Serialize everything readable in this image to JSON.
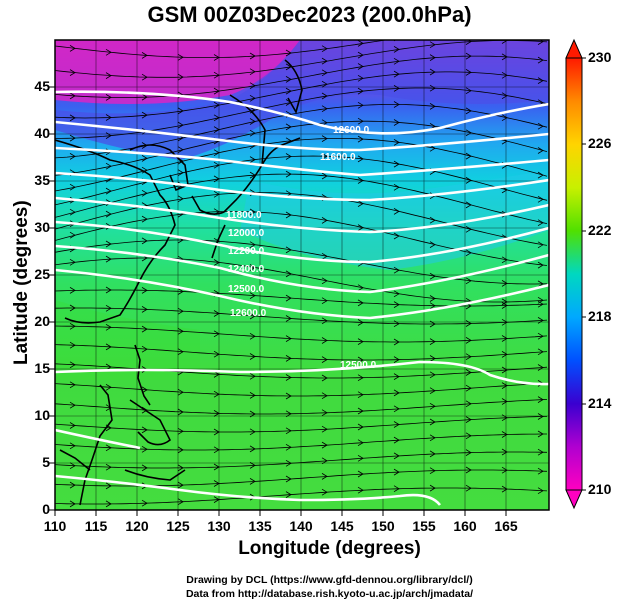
{
  "title": "GSM 00Z03Dec2023 (200.0hPa)",
  "x_axis": {
    "label": "Longitude (degrees)",
    "ticks": [
      "110",
      "115",
      "120",
      "125",
      "130",
      "135",
      "140",
      "145",
      "150",
      "155",
      "160",
      "165"
    ]
  },
  "y_axis": {
    "label": "Latitude  (degrees)",
    "ticks": [
      "0",
      "5",
      "10",
      "15",
      "20",
      "25",
      "30",
      "35",
      "40",
      "45"
    ]
  },
  "colorbar": {
    "ticks": [
      "230",
      "226",
      "222",
      "218",
      "214",
      "210"
    ],
    "colors": [
      "#ff1a00",
      "#ff8a00",
      "#ffd400",
      "#c8f000",
      "#50e000",
      "#00d8c0",
      "#00a8ff",
      "#0050ff",
      "#3a00d0",
      "#b000d0",
      "#ff00c0"
    ]
  },
  "contour_labels": [
    "12600.0",
    "11600.0",
    "11800.0",
    "12000.0",
    "12200.0",
    "12400.0",
    "12500.0",
    "12500.0",
    "12600.0"
  ],
  "credits": {
    "line1": "Drawing by DCL (https://www.gfd-dennou.org/library/dcl/)",
    "line2": "Data from http://database.rish.kyoto-u.ac.jp/arch/jmadata/"
  },
  "chart_data": {
    "type": "heatmap",
    "title": "GSM 00Z03Dec2023 (200.0hPa)",
    "xlabel": "Longitude (degrees)",
    "ylabel": "Latitude  (degrees)",
    "xlim": [
      110,
      170
    ],
    "ylim": [
      0,
      50
    ],
    "colorbar_range": [
      210,
      230
    ],
    "overlays": [
      "temperature shading",
      "geopotential height contours",
      "wind streamlines"
    ]
  }
}
